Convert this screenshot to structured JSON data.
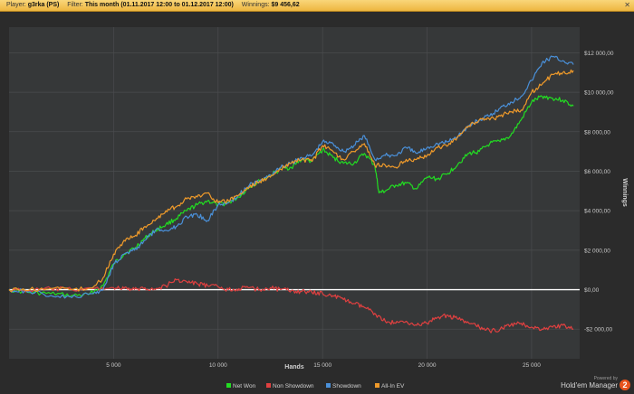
{
  "header": {
    "player_label": "Player:",
    "player_value": "g3rka (PS)",
    "filter_label": "Filter:",
    "filter_value": "This month (01.11.2017 12:00 to 01.12.2017 12:00)",
    "winnings_label": "Winnings:",
    "winnings_value": "$9 456,62",
    "close_icon": "close-icon"
  },
  "chart_data": {
    "type": "line",
    "xlabel": "Hands",
    "ylabel": "Winnings",
    "xlim": [
      0,
      27300
    ],
    "ylim": [
      -3500,
      13300
    ],
    "x_ticks": [
      5000,
      10000,
      15000,
      20000,
      25000
    ],
    "x_tick_labels": [
      "5 000",
      "10 000",
      "15 000",
      "20 000",
      "25 000"
    ],
    "y_ticks": [
      12000,
      10000,
      8000,
      6000,
      4000,
      2000,
      0,
      -2000
    ],
    "y_tick_labels": [
      "$12 000,00",
      "$10 000,00",
      "$8 000,00",
      "$6 000,00",
      "$4 000,00",
      "$2 000,00",
      "$0,00",
      "-$2 000,00"
    ],
    "grid": true,
    "legend_position": "bottom",
    "series": [
      {
        "name": "Net Won",
        "color": "#22dd22",
        "x": [
          0,
          1000,
          2000,
          3000,
          3800,
          4500,
          5000,
          5500,
          6000,
          6500,
          7000,
          7500,
          8000,
          8500,
          9000,
          9500,
          10000,
          10500,
          11000,
          11500,
          12000,
          12500,
          13000,
          13500,
          14000,
          14500,
          15000,
          15500,
          16000,
          16500,
          17000,
          17500,
          17700,
          18000,
          18500,
          19000,
          19500,
          20000,
          20500,
          21000,
          21500,
          22000,
          22500,
          23000,
          23500,
          24000,
          24500,
          25000,
          25500,
          26000,
          26500,
          27000
        ],
        "y": [
          0,
          -150,
          -200,
          -300,
          -250,
          200,
          1300,
          1800,
          2100,
          2600,
          3000,
          3300,
          3600,
          4000,
          4300,
          4500,
          4300,
          4400,
          4700,
          5200,
          5500,
          5800,
          6100,
          6200,
          6600,
          6500,
          7100,
          6700,
          6400,
          6400,
          6900,
          6300,
          4900,
          5000,
          5300,
          5400,
          5100,
          5700,
          5600,
          5900,
          6400,
          6900,
          7000,
          7400,
          7500,
          7800,
          8600,
          9500,
          9800,
          9700,
          9600,
          9300
        ]
      },
      {
        "name": "Non Showdown",
        "color": "#e04040",
        "x": [
          0,
          1000,
          2000,
          3000,
          4000,
          5000,
          5500,
          6000,
          6500,
          7000,
          7500,
          8000,
          8500,
          9000,
          9500,
          10000,
          10500,
          11000,
          11500,
          12000,
          12500,
          13000,
          13500,
          14000,
          14500,
          15000,
          15500,
          16000,
          16500,
          17000,
          17500,
          18000,
          18500,
          19000,
          19500,
          20000,
          20500,
          21000,
          21500,
          22000,
          22500,
          23000,
          23500,
          24000,
          24500,
          25000,
          25500,
          26000,
          26500,
          27000
        ],
        "y": [
          0,
          -50,
          50,
          0,
          50,
          100,
          50,
          0,
          100,
          0,
          200,
          500,
          400,
          300,
          200,
          150,
          0,
          50,
          100,
          0,
          100,
          0,
          -50,
          -100,
          -150,
          -200,
          -300,
          -500,
          -700,
          -900,
          -1200,
          -1600,
          -1700,
          -1600,
          -1800,
          -1700,
          -1400,
          -1300,
          -1500,
          -1700,
          -1900,
          -2100,
          -2000,
          -1800,
          -1700,
          -1900,
          -2000,
          -1900,
          -1800,
          -2000
        ]
      },
      {
        "name": "Showdown",
        "color": "#4a90d9",
        "x": [
          0,
          1000,
          2000,
          3000,
          4000,
          4500,
          5000,
          5500,
          6000,
          6500,
          7000,
          7500,
          8000,
          8500,
          9000,
          9500,
          10000,
          10500,
          11000,
          11500,
          12000,
          12500,
          13000,
          13500,
          14000,
          14500,
          15000,
          15500,
          16000,
          16500,
          17000,
          17500,
          18000,
          18500,
          19000,
          19500,
          20000,
          20500,
          21000,
          21500,
          22000,
          22500,
          23000,
          23500,
          24000,
          24500,
          25000,
          25500,
          26000,
          26500,
          27000
        ],
        "y": [
          0,
          -100,
          -300,
          -400,
          -200,
          0,
          1300,
          1800,
          2000,
          2500,
          3000,
          3000,
          3200,
          3700,
          3800,
          3500,
          4300,
          4400,
          4800,
          5300,
          5500,
          5800,
          6200,
          6400,
          6700,
          6800,
          7500,
          7400,
          7000,
          7300,
          7800,
          6600,
          6800,
          6800,
          7200,
          6900,
          7200,
          7400,
          7500,
          7800,
          8300,
          8600,
          8800,
          9200,
          9500,
          9800,
          10600,
          11500,
          11800,
          11600,
          11400
        ]
      },
      {
        "name": "All-In EV",
        "color": "#ef9a2a",
        "x": [
          0,
          1000,
          2000,
          3000,
          4000,
          4500,
          5000,
          5500,
          6000,
          6500,
          7000,
          7500,
          8000,
          8500,
          9000,
          9500,
          10000,
          10500,
          11000,
          11500,
          12000,
          12500,
          13000,
          13500,
          14000,
          14500,
          15000,
          15500,
          16000,
          16500,
          17000,
          17500,
          18000,
          18500,
          19000,
          19500,
          20000,
          20500,
          21000,
          21500,
          22000,
          22500,
          23000,
          23500,
          24000,
          24500,
          25000,
          25500,
          26000,
          26500,
          27000
        ],
        "y": [
          0,
          0,
          50,
          0,
          100,
          600,
          1800,
          2500,
          2700,
          3200,
          3500,
          4000,
          4200,
          4600,
          4700,
          4900,
          4400,
          4500,
          4800,
          5200,
          5500,
          5700,
          6100,
          6400,
          6600,
          6500,
          7300,
          7000,
          6600,
          7000,
          7400,
          6300,
          6300,
          6200,
          6600,
          6600,
          6800,
          7200,
          7300,
          7800,
          8300,
          8600,
          8600,
          8800,
          9000,
          9100,
          10000,
          10400,
          10900,
          11000,
          11100
        ]
      }
    ]
  },
  "footer": {
    "powered_by": "Powered by",
    "brand": "Hold'em Manager",
    "brand_logo_text": "2"
  }
}
